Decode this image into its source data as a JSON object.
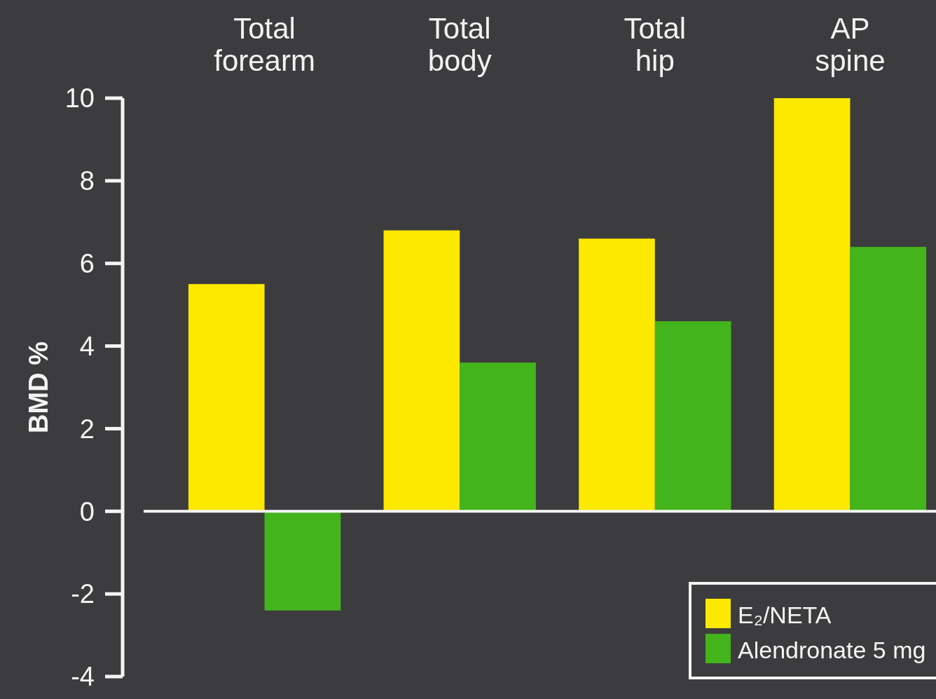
{
  "chart_data": {
    "type": "bar",
    "ylabel": "BMD %",
    "categories": [
      "Total forearm",
      "Total body",
      "Total hip",
      "AP spine"
    ],
    "series": [
      {
        "name": "E₂/NETA",
        "color": "#fde800",
        "values": [
          5.5,
          6.8,
          6.6,
          10
        ]
      },
      {
        "name": "Alendronate 5 mg",
        "color": "#44b41c",
        "values": [
          -2.4,
          3.6,
          4.6,
          6.4
        ]
      }
    ],
    "ylim": [
      -4,
      10
    ],
    "yticks": [
      -4,
      -2,
      0,
      2,
      4,
      6,
      8,
      10
    ],
    "legend": "bottom right"
  }
}
